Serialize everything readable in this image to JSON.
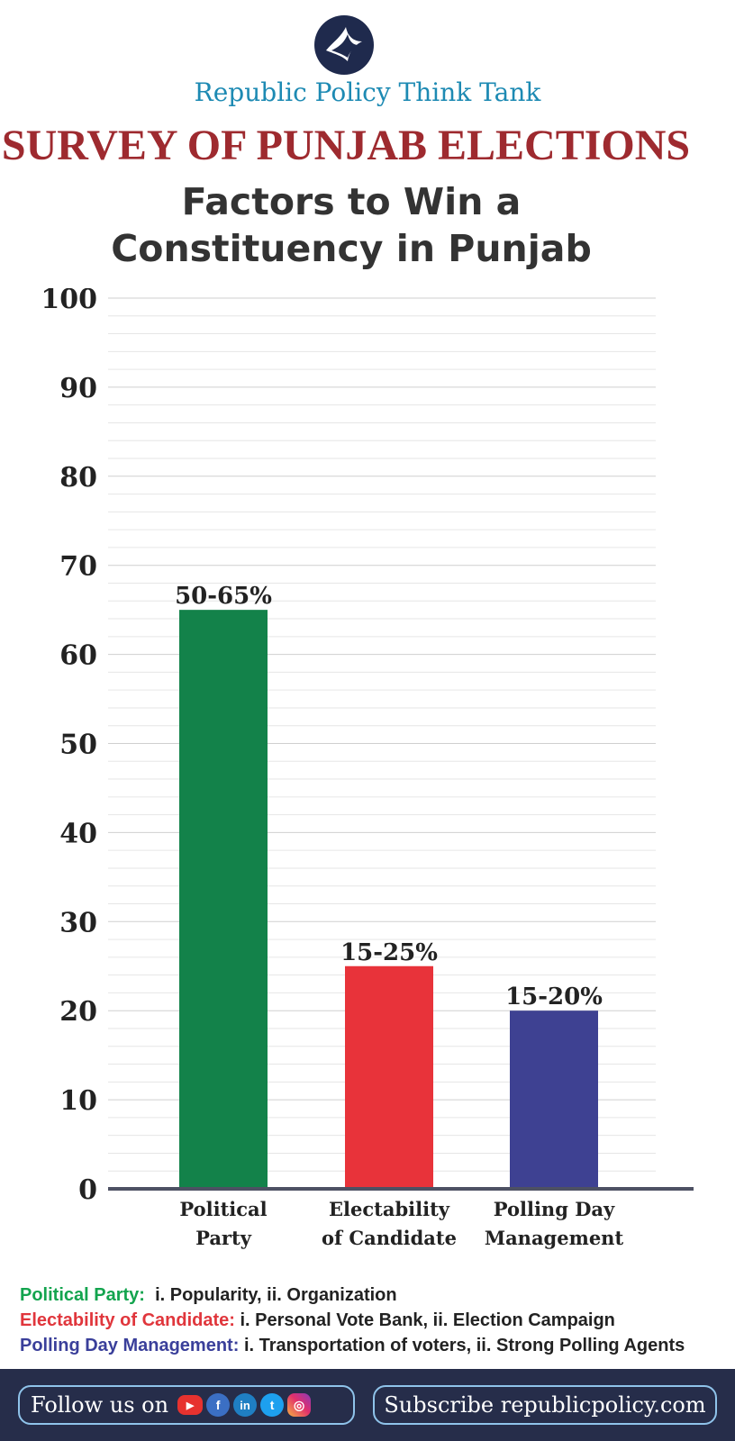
{
  "header": {
    "org_name": "Republic Policy Think Tank",
    "survey_title": "SURVEY OF PUNJAB ELECTIONS",
    "chart_title_line1": "Factors to Win a",
    "chart_title_line2": "Constituency in Punjab"
  },
  "chart_data": {
    "type": "bar",
    "title": "Factors to Win a Constituency in Punjab",
    "categories": [
      "Political Party",
      "Electability of Candidate",
      "Polling Day Management"
    ],
    "category_label_lines": [
      [
        "Political",
        "Party"
      ],
      [
        "Electability",
        "of Candidate"
      ],
      [
        "Polling Day",
        "Management"
      ]
    ],
    "values": [
      65,
      25,
      20
    ],
    "data_labels": [
      "50-65%",
      "15-25%",
      "15-20%"
    ],
    "bar_colors": [
      "#13824a",
      "#e8333a",
      "#3e4192"
    ],
    "yticks": [
      0,
      10,
      20,
      30,
      40,
      50,
      60,
      70,
      80,
      90,
      100
    ],
    "ylim": [
      0,
      100
    ],
    "xlabel": "",
    "ylabel": "",
    "grid": true
  },
  "notes": [
    {
      "label": "Political Party:",
      "text": "i. Popularity, ii. Organization",
      "color": "#13a44e"
    },
    {
      "label": "Electability of Candidate:",
      "text": "i. Personal Vote Bank, ii. Election Campaign",
      "color": "#e0363c"
    },
    {
      "label": "Polling Day Management:",
      "text": "i. Transportation of voters, ii. Strong Polling Agents",
      "color": "#3a3f9a"
    }
  ],
  "footer": {
    "follow_label": "Follow us on",
    "social": [
      "youtube-icon",
      "facebook-icon",
      "linkedin-icon",
      "twitter-icon",
      "instagram-icon"
    ],
    "subscribe_text": "Subscribe republicpolicy.com"
  }
}
